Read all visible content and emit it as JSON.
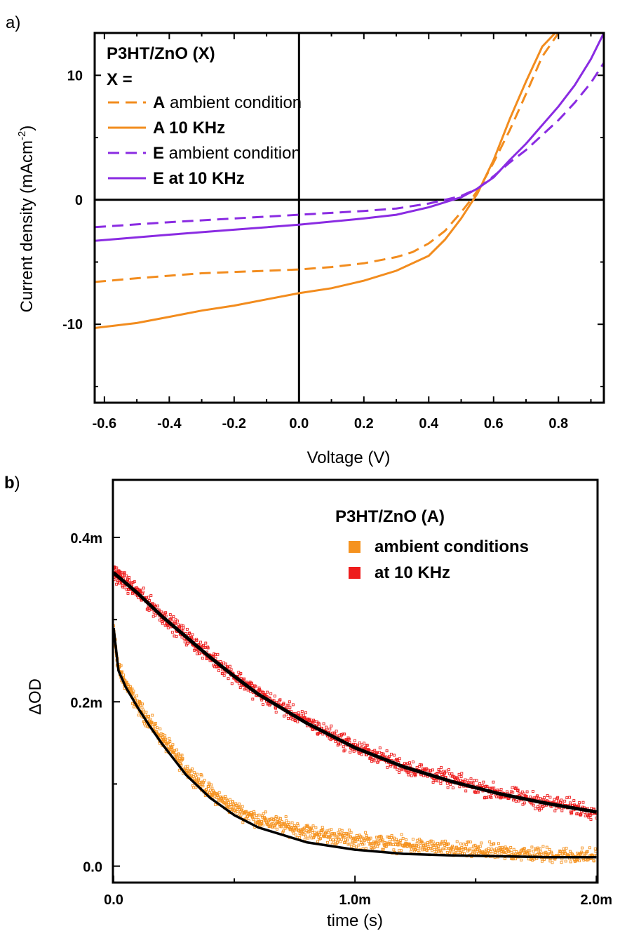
{
  "chart_data": [
    {
      "panel_label": "a)",
      "type": "line",
      "xlabel": "Voltage (V)",
      "ylabel": "Current density (mAcm",
      "ylabel_sup": "-2",
      "ylabel_end": ")",
      "xlim": [
        -0.63,
        0.94
      ],
      "ylim": [
        -16.3,
        13.4
      ],
      "xticks": [
        "-0.6",
        "-0.4",
        "-0.2",
        "0.0",
        "0.2",
        "0.4",
        "0.6",
        "0.8"
      ],
      "xtick_values": [
        -0.6,
        -0.4,
        -0.2,
        0.0,
        0.2,
        0.4,
        0.6,
        0.8
      ],
      "yticks": [
        "-10",
        "0",
        "10"
      ],
      "ytick_values": [
        -10,
        0,
        10
      ],
      "legend_title": "P3HT/ZnO  (X)",
      "legend_subtitle": "X =",
      "legend_position": "top-left",
      "series": [
        {
          "name": "A ambient condition",
          "name_bold": "A",
          "name_rest": " ambient condition",
          "color": "#f28c1e",
          "dash": true,
          "x": [
            -0.63,
            -0.5,
            -0.4,
            -0.3,
            -0.2,
            -0.1,
            0.0,
            0.1,
            0.2,
            0.3,
            0.35,
            0.4,
            0.45,
            0.5,
            0.53,
            0.56,
            0.6,
            0.65,
            0.7,
            0.75,
            0.8
          ],
          "y": [
            -6.6,
            -6.3,
            -6.1,
            -5.9,
            -5.8,
            -5.7,
            -5.6,
            -5.4,
            -5.1,
            -4.6,
            -4.2,
            -3.5,
            -2.5,
            -1.0,
            0.0,
            1.1,
            3.0,
            5.6,
            8.5,
            11.5,
            13.4
          ]
        },
        {
          "name": "A 10 KHz",
          "name_bold": "A 10 KHz",
          "name_rest": "",
          "color": "#f28c1e",
          "dash": false,
          "x": [
            -0.63,
            -0.5,
            -0.4,
            -0.3,
            -0.2,
            -0.1,
            0.0,
            0.1,
            0.2,
            0.3,
            0.4,
            0.45,
            0.5,
            0.53,
            0.55,
            0.6,
            0.65,
            0.7,
            0.75,
            0.79
          ],
          "y": [
            -10.3,
            -9.9,
            -9.4,
            -8.9,
            -8.5,
            -8.0,
            -7.5,
            -7.1,
            -6.5,
            -5.7,
            -4.5,
            -3.2,
            -1.5,
            -0.3,
            0.5,
            3.2,
            6.5,
            9.5,
            12.3,
            13.4
          ]
        },
        {
          "name": "E ambient condition",
          "name_bold": "E",
          "name_rest": " ambient condition",
          "color": "#8a2be2",
          "dash": true,
          "x": [
            -0.63,
            -0.4,
            -0.2,
            0.0,
            0.2,
            0.3,
            0.4,
            0.45,
            0.5,
            0.55,
            0.6,
            0.65,
            0.7,
            0.75,
            0.8,
            0.85,
            0.9,
            0.94
          ],
          "y": [
            -2.2,
            -1.8,
            -1.5,
            -1.2,
            -0.9,
            -0.7,
            -0.3,
            0.0,
            0.3,
            0.9,
            1.9,
            3.0,
            4.0,
            5.2,
            6.4,
            7.8,
            9.4,
            11.0
          ]
        },
        {
          "name": "E at 10 KHz",
          "name_bold": "E at 10 KHz",
          "name_rest": "",
          "color": "#8a2be2",
          "dash": false,
          "x": [
            -0.63,
            -0.4,
            -0.2,
            0.0,
            0.2,
            0.3,
            0.4,
            0.45,
            0.5,
            0.55,
            0.6,
            0.65,
            0.7,
            0.75,
            0.8,
            0.85,
            0.9,
            0.94
          ],
          "y": [
            -3.3,
            -2.8,
            -2.4,
            -2.0,
            -1.5,
            -1.2,
            -0.6,
            -0.2,
            0.2,
            0.9,
            1.8,
            3.2,
            4.5,
            6.0,
            7.5,
            9.2,
            11.3,
            13.4
          ]
        }
      ]
    },
    {
      "panel_label": "b",
      "panel_label_end": ")",
      "type": "scatter",
      "xlabel": "time (s)",
      "ylabel": "ΔOD",
      "xlim": [
        -3e-06,
        0.002005
      ],
      "ylim": [
        -2e-05,
        0.00047
      ],
      "xticks": [
        "0.0",
        "1.0m",
        "2.0m"
      ],
      "xtick_values": [
        0.0,
        0.001,
        0.002
      ],
      "yticks": [
        "0.0",
        "0.2m",
        "0.4m"
      ],
      "ytick_values": [
        0.0,
        0.0002,
        0.0004
      ],
      "legend_title": "P3HT/ZnO  (A)",
      "legend_position": "top-right",
      "series": [
        {
          "name": "ambient conditions",
          "color": "#f5921e",
          "x": [
            0.0,
            2e-05,
            5e-05,
            0.0001,
            0.00015,
            0.0002,
            0.0003,
            0.0004,
            0.0005,
            0.0006,
            0.0008,
            0.001,
            0.0012,
            0.0014,
            0.0016,
            0.0018,
            0.002
          ],
          "y": [
            0.000285,
            0.00024,
            0.000222,
            0.000195,
            0.000175,
            0.000155,
            0.000118,
            9e-05,
            7e-05,
            5.7e-05,
            4.2e-05,
            3.2e-05,
            2.6e-05,
            2e-05,
            1.7e-05,
            1.4e-05,
            1.2e-05
          ]
        },
        {
          "name": "at 10 KHz",
          "color": "#ee1c1c",
          "x": [
            0.0,
            0.0001,
            0.0002,
            0.0003,
            0.0004,
            0.0005,
            0.0006,
            0.0008,
            0.001,
            0.0012,
            0.0014,
            0.0016,
            0.0018,
            0.002
          ],
          "y": [
            0.000358,
            0.000333,
            0.000305,
            0.00028,
            0.000255,
            0.000232,
            0.00021,
            0.000176,
            0.000145,
            0.000122,
            0.000105,
            8.9e-05,
            7.7e-05,
            6.7e-05
          ]
        }
      ],
      "fits": [
        {
          "series": "ambient conditions",
          "color": "#000000",
          "x": [
            0.0,
            2e-05,
            5e-05,
            0.0001,
            0.00015,
            0.0002,
            0.0003,
            0.0004,
            0.0005,
            0.0006,
            0.0008,
            0.001,
            0.0012,
            0.0014,
            0.0016,
            0.0018,
            0.002
          ],
          "y": [
            0.00029,
            0.000238,
            0.000218,
            0.000193,
            0.00017,
            0.000149,
            0.000111,
            8.3e-05,
            6.2e-05,
            4.7e-05,
            2.9e-05,
            2e-05,
            1.5e-05,
            1.3e-05,
            1.2e-05,
            1.1e-05,
            1.1e-05
          ]
        },
        {
          "series": "at 10 KHz",
          "color": "#000000",
          "x": [
            0.0,
            0.0001,
            0.0002,
            0.0003,
            0.0004,
            0.0005,
            0.0006,
            0.0008,
            0.001,
            0.0012,
            0.0014,
            0.0016,
            0.0018,
            0.002
          ],
          "y": [
            0.000357,
            0.000332,
            0.000304,
            0.000279,
            0.000254,
            0.000231,
            0.000209,
            0.000174,
            0.000144,
            0.000121,
            0.000103,
            8.8e-05,
            7.6e-05,
            6.6e-05
          ]
        }
      ]
    }
  ]
}
